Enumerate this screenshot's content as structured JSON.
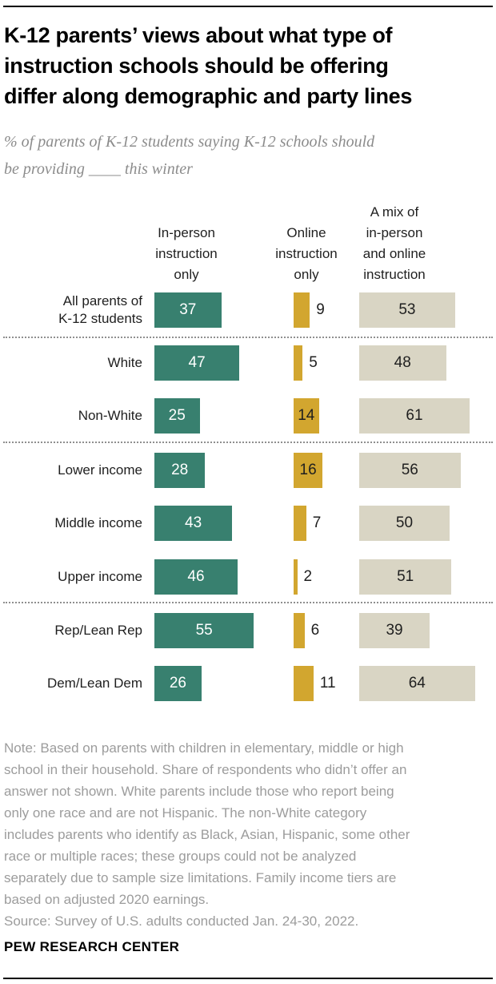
{
  "title": "K-12 parents’ views about what type of\ninstruction schools should be offering\ndiffer along demographic and party lines",
  "subtitle": "% of parents of K-12 students saying K-12 schools should\nbe providing ____ this winter",
  "column_headers": {
    "in_person": "In-person\ninstruction\nonly",
    "online": "Online\ninstruction\nonly",
    "mix": "A mix of\nin-person\nand online\ninstruction"
  },
  "chart_data": {
    "type": "bar",
    "orientation": "horizontal",
    "unit": "percent",
    "value_labels_shown": true,
    "axis_shown": false,
    "categories": [
      "All parents of K-12 students",
      "White",
      "Non-White",
      "Lower income",
      "Middle income",
      "Upper income",
      "Rep/Lean Rep",
      "Dem/Lean Dem"
    ],
    "row_labels_display": [
      "All parents of\nK-12 students",
      "White",
      "Non-White",
      "Lower income",
      "Middle income",
      "Upper income",
      "Rep/Lean Rep",
      "Dem/Lean Dem"
    ],
    "series": [
      {
        "name": "In-person instruction only",
        "color": "#38806f",
        "values": [
          37,
          47,
          25,
          28,
          43,
          46,
          55,
          26
        ]
      },
      {
        "name": "Online instruction only",
        "color": "#d2a62f",
        "values": [
          9,
          5,
          14,
          16,
          7,
          2,
          6,
          11
        ]
      },
      {
        "name": "A mix of in-person and online instruction",
        "color": "#d9d5c4",
        "values": [
          53,
          48,
          61,
          56,
          50,
          51,
          39,
          64
        ]
      }
    ],
    "group_separators_after": [
      0,
      2,
      5
    ]
  },
  "note": "Note: Based on parents with children in elementary, middle or high\nschool in their household. Share of respondents who didn’t offer an\nanswer not shown. White parents include those who report being\nonly one race and are not Hispanic. The non-White category\nincludes parents who identify as Black, Asian, Hispanic, some other\nrace or multiple races; these groups could not be analyzed\nseparately due to sample size limitations. Family income tiers are\nbased on adjusted 2020 earnings.\nSource: Survey of U.S. adults conducted Jan. 24-30, 2022.",
  "footer": "PEW RESEARCH CENTER"
}
